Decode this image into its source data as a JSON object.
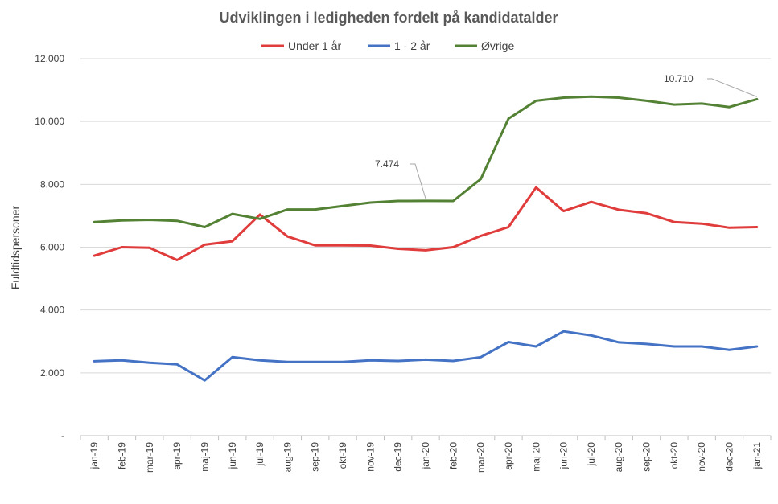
{
  "chart_data": {
    "type": "line",
    "title": "Udviklingen i ledigheden fordelt på kandidatalder",
    "xlabel": "",
    "ylabel": "Fuldtidspersoner",
    "ylim": [
      0,
      12000
    ],
    "yticks": [
      0,
      2000,
      4000,
      6000,
      8000,
      10000,
      12000
    ],
    "ytick_labels": [
      "-",
      "2.000",
      "4.000",
      "6.000",
      "8.000",
      "10.000",
      "12.000"
    ],
    "grid": true,
    "legend_position": "top",
    "categories": [
      "jan-19",
      "feb-19",
      "mar-19",
      "apr-19",
      "maj-19",
      "jun-19",
      "jul-19",
      "aug-19",
      "sep-19",
      "okt-19",
      "nov-19",
      "dec-19",
      "jan-20",
      "feb-20",
      "mar-20",
      "apr-20",
      "maj-20",
      "jun-20",
      "jul-20",
      "aug-20",
      "sep-20",
      "okt-20",
      "nov-20",
      "dec-20",
      "jan-21"
    ],
    "series": [
      {
        "name": "Under 1 år",
        "color": "#e03c3c",
        "values": [
          5730,
          6000,
          5980,
          5590,
          6080,
          6190,
          7040,
          6340,
          6060,
          6060,
          6050,
          5950,
          5900,
          6000,
          6360,
          6640,
          7900,
          7150,
          7440,
          7190,
          7080,
          6800,
          6750,
          6620,
          6640
        ]
      },
      {
        "name": "1 - 2 år",
        "color": "#4472c4",
        "values": [
          2370,
          2400,
          2320,
          2270,
          1760,
          2500,
          2400,
          2350,
          2350,
          2350,
          2400,
          2380,
          2420,
          2380,
          2500,
          2980,
          2840,
          3320,
          3190,
          2970,
          2920,
          2840,
          2840,
          2730,
          2840
        ]
      },
      {
        "name": "Øvrige",
        "color": "#548235",
        "values": [
          6800,
          6850,
          6870,
          6840,
          6640,
          7060,
          6900,
          7200,
          7200,
          7310,
          7420,
          7470,
          7474,
          7470,
          8170,
          10090,
          10660,
          10760,
          10790,
          10760,
          10660,
          10540,
          10570,
          10460,
          10710
        ]
      }
    ],
    "annotations": [
      {
        "series": "Øvrige",
        "category": "jan-20",
        "label": "7.474"
      },
      {
        "series": "Øvrige",
        "category": "jan-21",
        "label": "10.710"
      }
    ]
  }
}
